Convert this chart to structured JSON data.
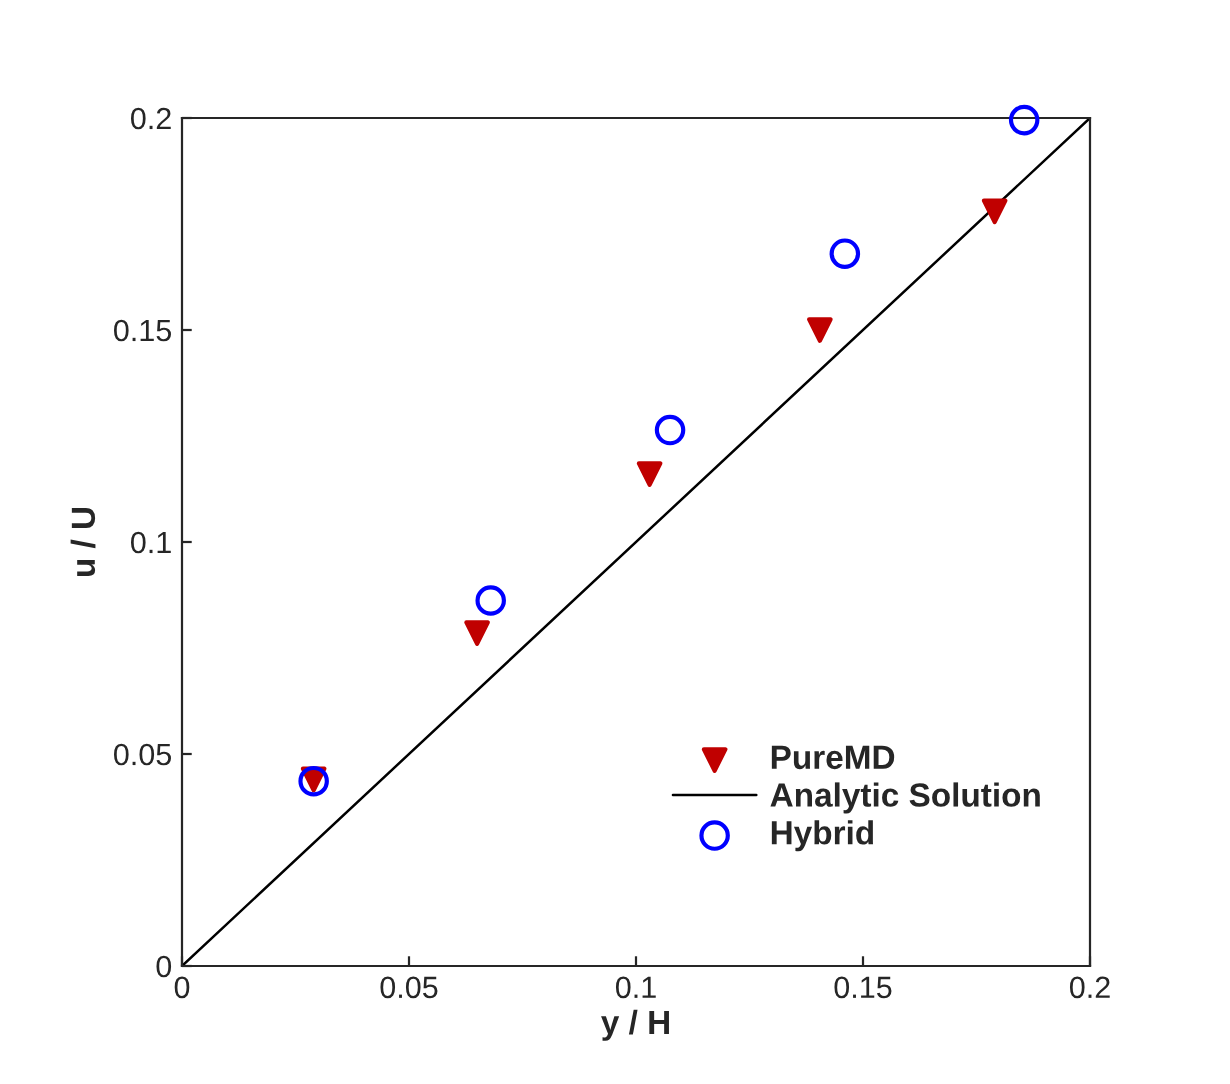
{
  "chart_data": {
    "type": "scatter",
    "xlabel": "y / H",
    "ylabel": "u / U",
    "series": [
      {
        "name": "PureMD",
        "marker": "triangle",
        "color": "#c00000",
        "x": [
          0.029,
          0.065,
          0.103,
          0.1405,
          0.179
        ],
        "values": [
          0.044,
          0.0785,
          0.116,
          0.15,
          0.178
        ]
      },
      {
        "name": "Analytic Solution",
        "type": "line",
        "marker": "none",
        "color": "#000000",
        "x": [
          0,
          0.2
        ],
        "values": [
          0,
          0.2
        ]
      },
      {
        "name": "Hybrid",
        "marker": "circle",
        "color": "#0000ff",
        "x": [
          0.029,
          0.068,
          0.1075,
          0.146,
          0.1855
        ],
        "values": [
          0.0436,
          0.0862,
          0.1264,
          0.168,
          0.1995
        ]
      }
    ],
    "xlim": [
      0,
      0.2
    ],
    "ylim": [
      0,
      0.2
    ],
    "xticks": [
      0,
      0.05,
      0.1,
      0.15,
      0.2
    ],
    "yticks": [
      0,
      0.05,
      0.1,
      0.15,
      0.2
    ],
    "grid": false,
    "legend": "bottom right"
  }
}
